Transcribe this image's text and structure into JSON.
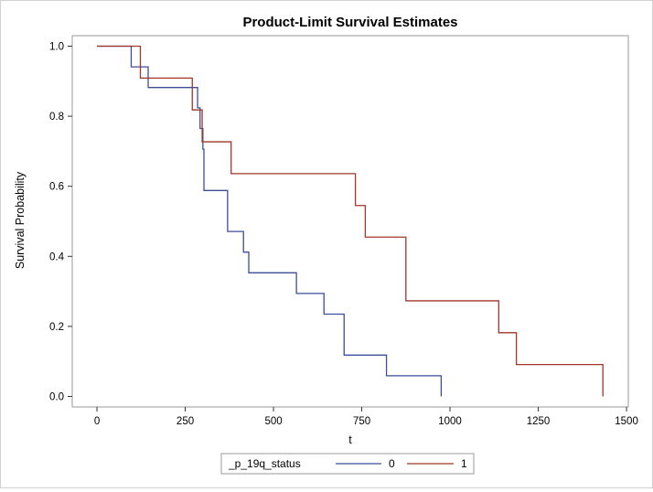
{
  "chart_data": {
    "type": "line",
    "step": true,
    "title": "Product-Limit Survival Estimates",
    "xlabel": "t",
    "ylabel": "Survival Probability",
    "xlim": [
      -70,
      1505
    ],
    "ylim": [
      -0.03,
      1.03
    ],
    "x_ticks": [
      0,
      250,
      500,
      750,
      1000,
      1250,
      1500
    ],
    "y_ticks": [
      0.0,
      0.2,
      0.4,
      0.6,
      0.8,
      1.0
    ],
    "x_tick_labels": [
      "0",
      "250",
      "500",
      "750",
      "1000",
      "1250",
      "1500"
    ],
    "y_tick_labels": [
      "0.0",
      "0.2",
      "0.4",
      "0.6",
      "0.8",
      "1.0"
    ],
    "grid": false,
    "legend": {
      "title": "_p_19q_status",
      "position": "bottom-center"
    },
    "series": [
      {
        "name": "0",
        "color": "#3b4d9c",
        "steps": [
          [
            0,
            1.0
          ],
          [
            97,
            0.941
          ],
          [
            145,
            0.882
          ],
          [
            285,
            0.824
          ],
          [
            292,
            0.765
          ],
          [
            300,
            0.706
          ],
          [
            303,
            0.588
          ],
          [
            370,
            0.471
          ],
          [
            415,
            0.412
          ],
          [
            430,
            0.353
          ],
          [
            565,
            0.294
          ],
          [
            643,
            0.235
          ],
          [
            700,
            0.118
          ],
          [
            820,
            0.059
          ],
          [
            975,
            0.0
          ]
        ]
      },
      {
        "name": "1",
        "color": "#a23628",
        "steps": [
          [
            0,
            1.0
          ],
          [
            123,
            0.909
          ],
          [
            270,
            0.818
          ],
          [
            298,
            0.727
          ],
          [
            380,
            0.636
          ],
          [
            732,
            0.545
          ],
          [
            760,
            0.455
          ],
          [
            875,
            0.273
          ],
          [
            1138,
            0.182
          ],
          [
            1188,
            0.091
          ],
          [
            1433,
            0.0
          ]
        ]
      }
    ]
  }
}
